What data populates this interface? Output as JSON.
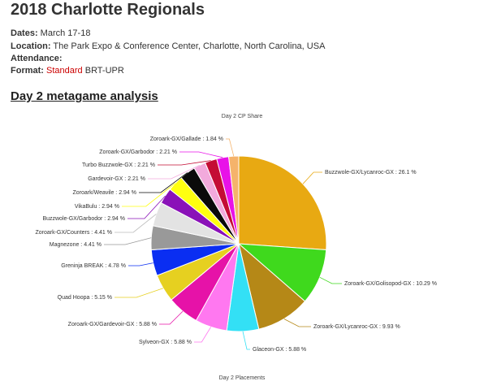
{
  "page": {
    "title": "2018 Charlotte Regionals",
    "dates_label": "Dates:",
    "dates_value": " March 17-18",
    "location_label": "Location:",
    "location_value": " The Park Expo & Conference Center, Charlotte, North Carolina, USA",
    "attendance_label": "Attendance:",
    "attendance_value": "",
    "format_label": "Format:",
    "format_link": "Standard",
    "format_value": " BRT-UPR",
    "section_title": "Day 2 metagame analysis",
    "next_chart_title": "Day 2 Placements"
  },
  "chart_data": {
    "type": "pie",
    "title": "Day 2 CP Share",
    "label_format": "{name} : {value} %",
    "slices": [
      {
        "name": "Buzzwole-GX/Lycanroc-GX",
        "value": 26.1,
        "color": "#e8a912"
      },
      {
        "name": "Zoroark-GX/Golisopod-GX",
        "value": 10.29,
        "color": "#3fd91d"
      },
      {
        "name": "Zoroark-GX/Lycanroc-GX",
        "value": 9.93,
        "color": "#b58817"
      },
      {
        "name": "Glaceon-GX",
        "value": 5.88,
        "color": "#33e0f5"
      },
      {
        "name": "Sylveon-GX",
        "value": 5.88,
        "color": "#ff78f0"
      },
      {
        "name": "Zoroark-GX/Gardevoir-GX",
        "value": 5.88,
        "color": "#e612a8"
      },
      {
        "name": "Quad Hoopa",
        "value": 5.15,
        "color": "#e6d020"
      },
      {
        "name": "Greninja BREAK",
        "value": 4.78,
        "color": "#0a2ef2"
      },
      {
        "name": "Magnezone",
        "value": 4.41,
        "color": "#999999"
      },
      {
        "name": "Zoroark-GX/Counters",
        "value": 4.41,
        "color": "#e3e3e3"
      },
      {
        "name": "Buzzwole-GX/Garbodor",
        "value": 2.94,
        "color": "#8a11b8"
      },
      {
        "name": "VikaBulu",
        "value": 2.94,
        "color": "#ffff10"
      },
      {
        "name": "Zoroark/Weavile",
        "value": 2.94,
        "color": "#0a0a0a"
      },
      {
        "name": "Gardevoir-GX",
        "value": 2.21,
        "color": "#f2aadc"
      },
      {
        "name": "Turbo Buzzwole-GX",
        "value": 2.21,
        "color": "#c40d35"
      },
      {
        "name": "Zoroark-GX/Garbodor",
        "value": 2.21,
        "color": "#e812e8"
      },
      {
        "name": "Zoroark-GX/Gallade",
        "value": 1.84,
        "color": "#f5b36b"
      }
    ]
  }
}
